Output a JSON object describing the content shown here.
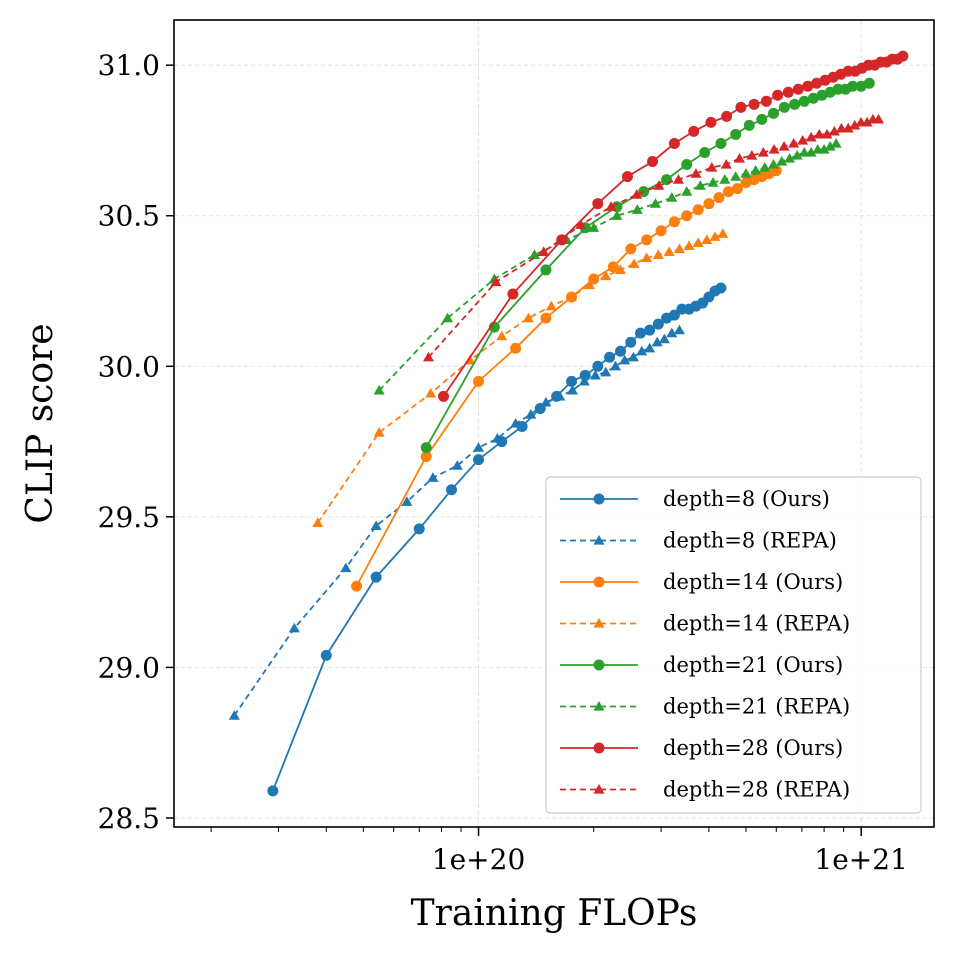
{
  "chart_data": {
    "type": "line",
    "title": "",
    "xlabel": "Training FLOPs",
    "ylabel": "CLIP score",
    "xscale": "log",
    "xlim": [
      1.6e+19,
      1.55e+21
    ],
    "ylim": [
      28.47,
      31.15
    ],
    "x_major_ticks": [
      1e+20,
      1e+21
    ],
    "x_tick_labels": [
      "1e+20",
      "1e+21"
    ],
    "y_ticks": [
      28.5,
      29.0,
      29.5,
      30.0,
      30.5,
      31.0
    ],
    "y_tick_labels": [
      "28.5",
      "29.0",
      "29.5",
      "30.0",
      "30.5",
      "31.0"
    ],
    "grid": true,
    "legend_position": "lower right",
    "series": [
      {
        "name": "depth=8 (Ours)",
        "color": "#1f77b4",
        "line": "solid",
        "marker": "circle",
        "x": [
          2.9e+19,
          4e+19,
          5.4e+19,
          7e+19,
          8.5e+19,
          1e+20,
          1.15e+20,
          1.3e+20,
          1.45e+20,
          1.6e+20,
          1.75e+20,
          1.9e+20,
          2.05e+20,
          2.2e+20,
          2.35e+20,
          2.5e+20,
          2.65e+20,
          2.8e+20,
          2.95e+20,
          3.1e+20,
          3.25e+20,
          3.4e+20,
          3.55e+20,
          3.7e+20,
          3.85e+20,
          4e+20,
          4.15e+20,
          4.3e+20
        ],
        "y": [
          28.59,
          29.04,
          29.3,
          29.46,
          29.59,
          29.69,
          29.75,
          29.8,
          29.86,
          29.9,
          29.95,
          29.97,
          30.0,
          30.03,
          30.05,
          30.08,
          30.11,
          30.12,
          30.14,
          30.16,
          30.17,
          30.19,
          30.19,
          30.2,
          30.21,
          30.23,
          30.25,
          30.26
        ]
      },
      {
        "name": "depth=8 (REPA)",
        "color": "#1f77b4",
        "line": "dashed",
        "marker": "triangle",
        "x": [
          2.3e+19,
          3.3e+19,
          4.5e+19,
          5.4e+19,
          6.5e+19,
          7.6e+19,
          8.8e+19,
          1e+20,
          1.12e+20,
          1.25e+20,
          1.37e+20,
          1.5e+20,
          1.63e+20,
          1.76e+20,
          1.89e+20,
          2.02e+20,
          2.15e+20,
          2.28e+20,
          2.41e+20,
          2.54e+20,
          2.67e+20,
          2.8e+20,
          2.93e+20,
          3.06e+20,
          3.2e+20,
          3.35e+20
        ],
        "y": [
          28.84,
          29.13,
          29.33,
          29.47,
          29.55,
          29.63,
          29.67,
          29.73,
          29.76,
          29.81,
          29.84,
          29.88,
          29.9,
          29.92,
          29.95,
          29.97,
          29.98,
          30.0,
          30.02,
          30.03,
          30.05,
          30.06,
          30.08,
          30.09,
          30.11,
          30.12
        ]
      },
      {
        "name": "depth=14 (Ours)",
        "color": "#ff7f0e",
        "line": "solid",
        "marker": "circle",
        "x": [
          4.8e+19,
          7.3e+19,
          1e+20,
          1.25e+20,
          1.5e+20,
          1.75e+20,
          2e+20,
          2.25e+20,
          2.5e+20,
          2.75e+20,
          3e+20,
          3.25e+20,
          3.5e+20,
          3.75e+20,
          4e+20,
          4.25e+20,
          4.5e+20,
          4.75e+20,
          5e+20,
          5.25e+20,
          5.5e+20,
          5.75e+20,
          6e+20
        ],
        "y": [
          29.27,
          29.7,
          29.95,
          30.06,
          30.16,
          30.23,
          30.29,
          30.33,
          30.39,
          30.42,
          30.45,
          30.48,
          30.5,
          30.52,
          30.54,
          30.56,
          30.58,
          30.59,
          30.61,
          30.62,
          30.63,
          30.64,
          30.65
        ]
      },
      {
        "name": "depth=14 (REPA)",
        "color": "#ff7f0e",
        "line": "dashed",
        "marker": "triangle",
        "x": [
          3.8e+19,
          5.5e+19,
          7.5e+19,
          9.5e+19,
          1.15e+20,
          1.35e+20,
          1.55e+20,
          1.75e+20,
          1.95e+20,
          2.15e+20,
          2.35e+20,
          2.55e+20,
          2.75e+20,
          2.95e+20,
          3.15e+20,
          3.35e+20,
          3.55e+20,
          3.75e+20,
          3.95e+20,
          4.15e+20,
          4.35e+20
        ],
        "y": [
          29.48,
          29.78,
          29.91,
          30.02,
          30.1,
          30.16,
          30.2,
          30.23,
          30.27,
          30.3,
          30.32,
          30.34,
          30.36,
          30.37,
          30.38,
          30.39,
          30.4,
          30.41,
          30.42,
          30.43,
          30.44
        ]
      },
      {
        "name": "depth=21 (Ours)",
        "color": "#2ca02c",
        "line": "solid",
        "marker": "circle",
        "x": [
          7.3e+19,
          1.1e+20,
          1.5e+20,
          1.9e+20,
          2.3e+20,
          2.7e+20,
          3.1e+20,
          3.5e+20,
          3.9e+20,
          4.3e+20,
          4.7e+20,
          5.1e+20,
          5.5e+20,
          5.9e+20,
          6.3e+20,
          6.7e+20,
          7.1e+20,
          7.5e+20,
          7.9e+20,
          8.3e+20,
          8.7e+20,
          9.1e+20,
          9.5e+20,
          1e+21,
          1.05e+21
        ],
        "y": [
          29.73,
          30.13,
          30.32,
          30.46,
          30.53,
          30.58,
          30.62,
          30.67,
          30.71,
          30.74,
          30.77,
          30.8,
          30.82,
          30.84,
          30.86,
          30.87,
          30.88,
          30.89,
          30.9,
          30.91,
          30.92,
          30.92,
          30.93,
          30.93,
          30.94
        ]
      },
      {
        "name": "depth=21 (REPA)",
        "color": "#2ca02c",
        "line": "dashed",
        "marker": "triangle",
        "x": [
          5.5e+19,
          8.3e+19,
          1.1e+20,
          1.4e+20,
          1.7e+20,
          2e+20,
          2.3e+20,
          2.6e+20,
          2.9e+20,
          3.2e+20,
          3.5e+20,
          3.8e+20,
          4.1e+20,
          4.4e+20,
          4.7e+20,
          5e+20,
          5.3e+20,
          5.6e+20,
          5.9e+20,
          6.2e+20,
          6.5e+20,
          6.8e+20,
          7.1e+20,
          7.4e+20,
          7.7e+20,
          8e+20,
          8.3e+20,
          8.6e+20
        ],
        "y": [
          29.92,
          30.16,
          30.29,
          30.37,
          30.42,
          30.46,
          30.5,
          30.52,
          30.54,
          30.56,
          30.58,
          30.6,
          30.61,
          30.62,
          30.63,
          30.64,
          30.65,
          30.66,
          30.67,
          30.68,
          30.69,
          30.7,
          30.71,
          30.71,
          30.72,
          30.72,
          30.73,
          30.74
        ]
      },
      {
        "name": "depth=28 (Ours)",
        "color": "#d62728",
        "line": "solid",
        "marker": "circle",
        "x": [
          8.1e+19,
          1.23e+20,
          1.65e+20,
          2.05e+20,
          2.45e+20,
          2.85e+20,
          3.25e+20,
          3.65e+20,
          4.05e+20,
          4.45e+20,
          4.85e+20,
          5.25e+20,
          5.65e+20,
          6.05e+20,
          6.45e+20,
          6.85e+20,
          7.25e+20,
          7.65e+20,
          8.05e+20,
          8.45e+20,
          8.85e+20,
          9.25e+20,
          9.65e+20,
          1.005e+21,
          1.045e+21,
          1.085e+21,
          1.125e+21,
          1.165e+21,
          1.205e+21,
          1.245e+21,
          1.285e+21
        ],
        "y": [
          29.9,
          30.24,
          30.42,
          30.54,
          30.63,
          30.68,
          30.74,
          30.78,
          30.81,
          30.83,
          30.86,
          30.87,
          30.88,
          30.9,
          30.91,
          30.92,
          30.93,
          30.94,
          30.95,
          30.96,
          30.97,
          30.98,
          30.98,
          30.99,
          31.0,
          31.0,
          31.01,
          31.01,
          31.02,
          31.02,
          31.03
        ]
      },
      {
        "name": "depth=28 (REPA)",
        "color": "#d62728",
        "line": "dashed",
        "marker": "triangle",
        "x": [
          7.4e+19,
          1.11e+20,
          1.48e+20,
          1.85e+20,
          2.22e+20,
          2.59e+20,
          2.96e+20,
          3.33e+20,
          3.7e+20,
          4.07e+20,
          4.44e+20,
          4.81e+20,
          5.18e+20,
          5.55e+20,
          5.92e+20,
          6.29e+20,
          6.66e+20,
          7.03e+20,
          7.4e+20,
          7.77e+20,
          8.14e+20,
          8.51e+20,
          8.88e+20,
          9.25e+20,
          9.62e+20,
          9.99e+20,
          1.036e+21,
          1.073e+21,
          1.11e+21
        ],
        "y": [
          30.03,
          30.28,
          30.38,
          30.47,
          30.53,
          30.57,
          30.6,
          30.62,
          30.64,
          30.66,
          30.67,
          30.69,
          30.7,
          30.71,
          30.72,
          30.73,
          30.74,
          30.75,
          30.76,
          30.77,
          30.77,
          30.78,
          30.79,
          30.79,
          30.8,
          30.81,
          30.81,
          30.82,
          30.82
        ]
      }
    ]
  }
}
